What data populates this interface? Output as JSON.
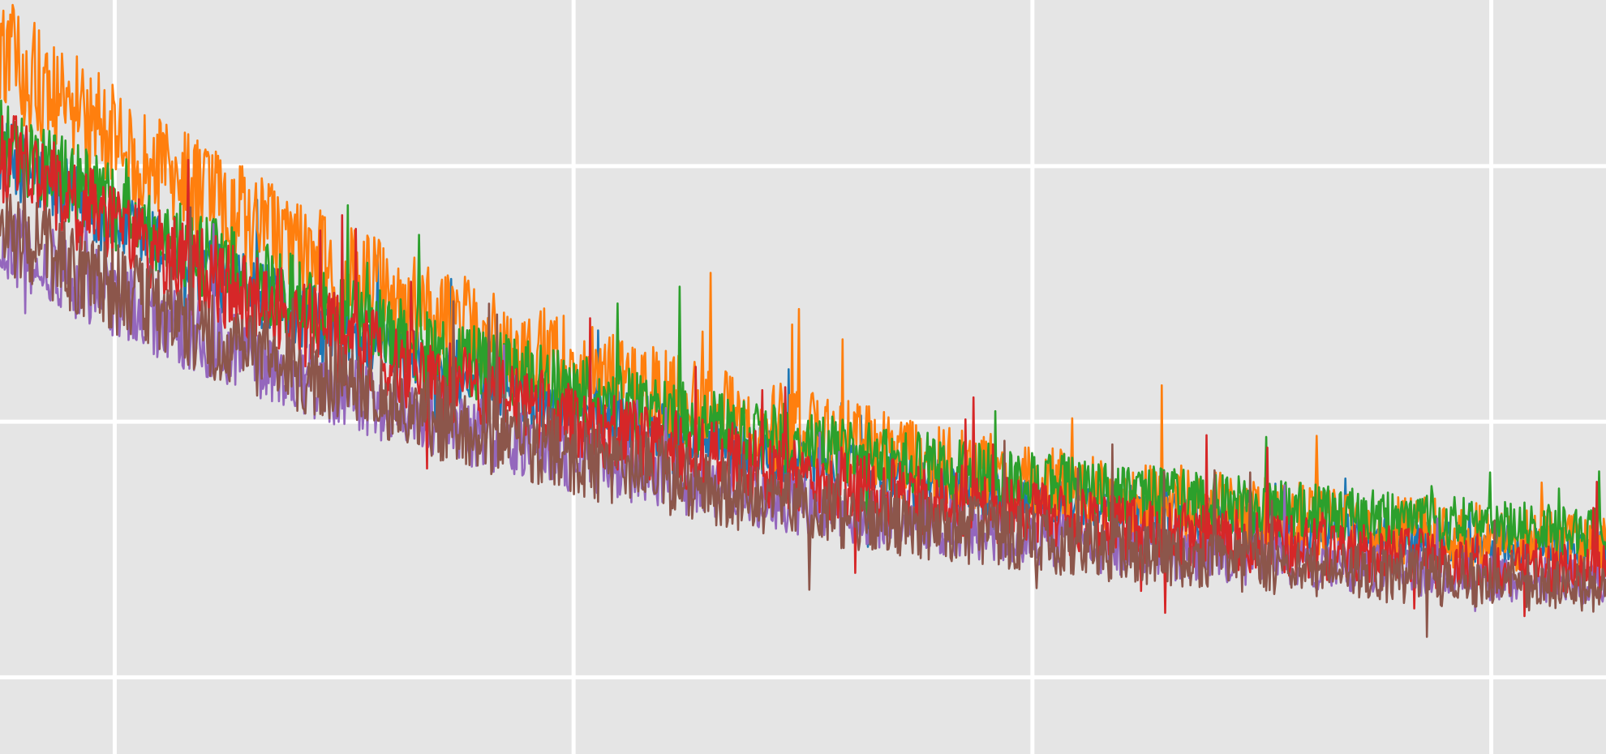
{
  "chart_data": {
    "type": "line",
    "title": "",
    "xlabel": "",
    "ylabel": "",
    "x_range": [
      -25,
      325
    ],
    "y_range": [
      -0.3,
      2.65
    ],
    "x_gridlines": [
      0,
      100,
      200,
      300
    ],
    "y_gridlines": [
      0,
      1,
      2
    ],
    "grid": true,
    "legend": "none",
    "background_color": "#e5e5e5",
    "grid_color": "#ffffff",
    "samples": 1400,
    "series": [
      {
        "color": "#1f77b4",
        "start": 2.05,
        "end": 0.35,
        "x_noise_hint": "high-frequency",
        "amplitude": 0.09,
        "order": 0
      },
      {
        "color": "#ff7f0e",
        "start": 2.45,
        "end": 0.33,
        "amplitude": 0.14,
        "order": 1
      },
      {
        "color": "#2ca02c",
        "start": 2.1,
        "end": 0.42,
        "amplitude": 0.11,
        "order": 2
      },
      {
        "color": "#9467bd",
        "start": 1.72,
        "end": 0.24,
        "amplitude": 0.1,
        "order": 3
      },
      {
        "color": "#d62728",
        "start": 2.05,
        "end": 0.26,
        "amplitude": 0.12,
        "order": 4
      },
      {
        "color": "#8c564b",
        "start": 1.78,
        "end": 0.22,
        "amplitude": 0.12,
        "order": 5
      }
    ]
  }
}
